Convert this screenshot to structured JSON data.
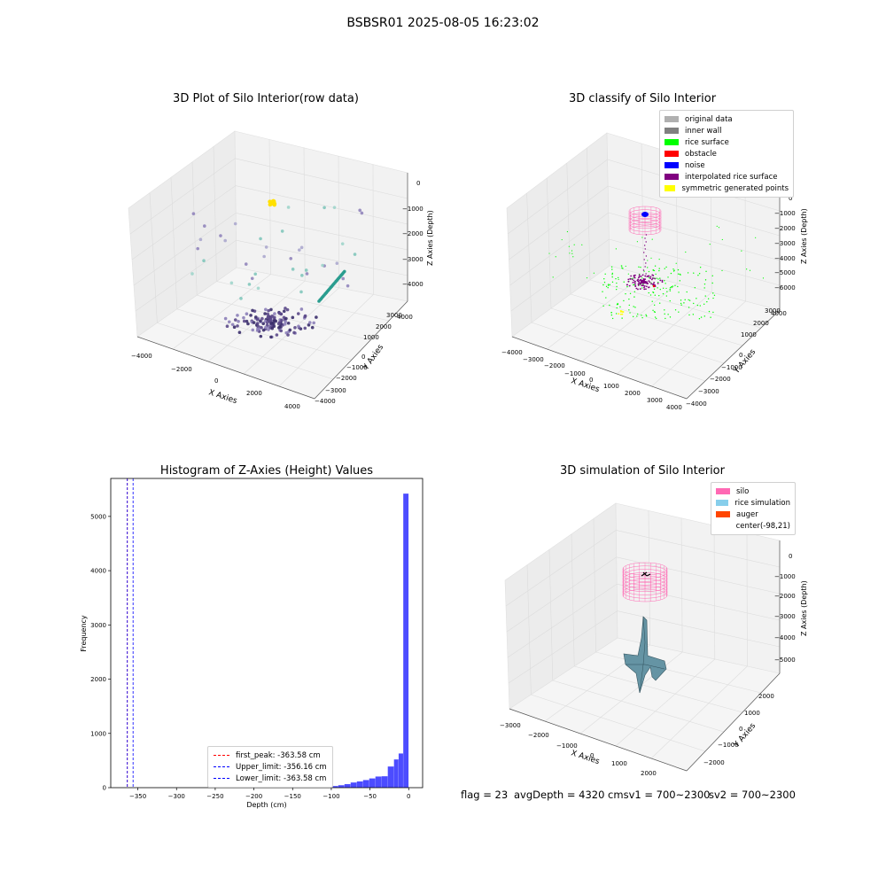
{
  "suptitle": "BSBSR01 2025-08-05 16:23:02",
  "panels": {
    "raw": {
      "title": "3D Plot of Silo Interior(row data)",
      "xlabel": "X Axies",
      "ylabel": "Y Axies",
      "zlabel": "Z Axies (Depth)",
      "xticks": [
        "−4000",
        "−2000",
        "0",
        "2000",
        "4000"
      ],
      "yticks": [
        "−4000",
        "−3000",
        "−2000",
        "−1000",
        "0",
        "1000",
        "2000",
        "3000",
        "4000"
      ],
      "zticks": [
        "0",
        "−1000",
        "−2000",
        "−3000",
        "−4000"
      ]
    },
    "classify": {
      "title": "3D classify of Silo Interior",
      "xlabel": "X Axies",
      "ylabel": "Y Axies",
      "zlabel": "Z Axies (Depth)",
      "xticks": [
        "−4000",
        "−3000",
        "−2000",
        "−1000",
        "0",
        "1000",
        "2000",
        "3000",
        "4000"
      ],
      "yticks": [
        "−4000",
        "−3000",
        "−2000",
        "−1000",
        "0",
        "1000",
        "2000",
        "3000",
        "4000"
      ],
      "zticks": [
        "0",
        "−1000",
        "−2000",
        "−3000",
        "−4000",
        "−5000",
        "−6000"
      ],
      "legend": [
        {
          "label": "original data",
          "color": "#b0b0b0"
        },
        {
          "label": "inner wall",
          "color": "#808080"
        },
        {
          "label": "rice surface",
          "color": "#00ff00"
        },
        {
          "label": "obstacle",
          "color": "#ff0000"
        },
        {
          "label": "noise",
          "color": "#0000ff"
        },
        {
          "label": "interpolated rice surface",
          "color": "#800080"
        },
        {
          "label": "symmetric generated points",
          "color": "#ffff00"
        }
      ]
    },
    "simulation": {
      "title": "3D simulation of Silo Interior",
      "xlabel": "X Axies",
      "ylabel": "Y Axies",
      "zlabel": "Z Axies (Depth)",
      "xticks": [
        "−3000",
        "−2000",
        "−1000",
        "0",
        "1000",
        "2000"
      ],
      "yticks": [
        "−2000",
        "−1000",
        "0",
        "1000",
        "2000"
      ],
      "zticks": [
        "0",
        "−1000",
        "−2000",
        "−3000",
        "−4000",
        "−5000"
      ],
      "legend": [
        {
          "label": "silo",
          "color": "#ff69b4"
        },
        {
          "label": "rice simulation",
          "color": "#87ceeb"
        },
        {
          "label": "auger",
          "color": "#ff4500"
        },
        {
          "label": "center(-98,21)",
          "color": "#ffffff"
        }
      ]
    }
  },
  "chart_data": {
    "type": "bar",
    "title": "Histogram of Z-Axies (Height) Values",
    "xlabel": "Depth (cm)",
    "ylabel": "Frequency",
    "xlim": [
      -385,
      18
    ],
    "ylim": [
      0,
      5700
    ],
    "xticks": [
      -350,
      -300,
      -250,
      -200,
      -150,
      -100,
      -50,
      0
    ],
    "xtick_labels": [
      "−350",
      "−300",
      "−250",
      "−200",
      "−150",
      "−100",
      "−50",
      "0"
    ],
    "yticks": [
      0,
      1000,
      2000,
      3000,
      4000,
      5000
    ],
    "bar_color": "#0000ff",
    "bins": [
      {
        "x0": -155,
        "x1": -147,
        "v": 5
      },
      {
        "x0": -147,
        "x1": -139,
        "v": 6
      },
      {
        "x0": -139,
        "x1": -131,
        "v": 8
      },
      {
        "x0": -131,
        "x1": -123,
        "v": 10
      },
      {
        "x0": -123,
        "x1": -115,
        "v": 14
      },
      {
        "x0": -115,
        "x1": -107,
        "v": 17
      },
      {
        "x0": -107,
        "x1": -99,
        "v": 22
      },
      {
        "x0": -99,
        "x1": -91,
        "v": 30
      },
      {
        "x0": -91,
        "x1": -83,
        "v": 45
      },
      {
        "x0": -83,
        "x1": -75,
        "v": 65
      },
      {
        "x0": -75,
        "x1": -67,
        "v": 95
      },
      {
        "x0": -67,
        "x1": -59,
        "v": 115
      },
      {
        "x0": -59,
        "x1": -51,
        "v": 140
      },
      {
        "x0": -51,
        "x1": -43,
        "v": 170
      },
      {
        "x0": -43,
        "x1": -35,
        "v": 205
      },
      {
        "x0": -35,
        "x1": -27,
        "v": 210
      },
      {
        "x0": -27,
        "x1": -19,
        "v": 390
      },
      {
        "x0": -19,
        "x1": -13,
        "v": 520
      },
      {
        "x0": -13,
        "x1": -7,
        "v": 630
      },
      {
        "x0": -7,
        "x1": 0,
        "v": 5420
      }
    ],
    "lines": [
      {
        "label": "first_peak: -363.58 cm",
        "x": -363.58,
        "color": "#ff0000"
      },
      {
        "label": "Upper_limit: -356.16 cm",
        "x": -356.16,
        "color": "#0000ff"
      },
      {
        "label": "Lower_limit: -363.58 cm",
        "x": -363.58,
        "color": "#0000ff"
      }
    ],
    "legend_position": "lower-center"
  },
  "status": {
    "flag": "flag = 23",
    "avg": "avgDepth = 4320 cmsv1 = 700~2300",
    "sv2": "sv2 = 700~2300"
  }
}
